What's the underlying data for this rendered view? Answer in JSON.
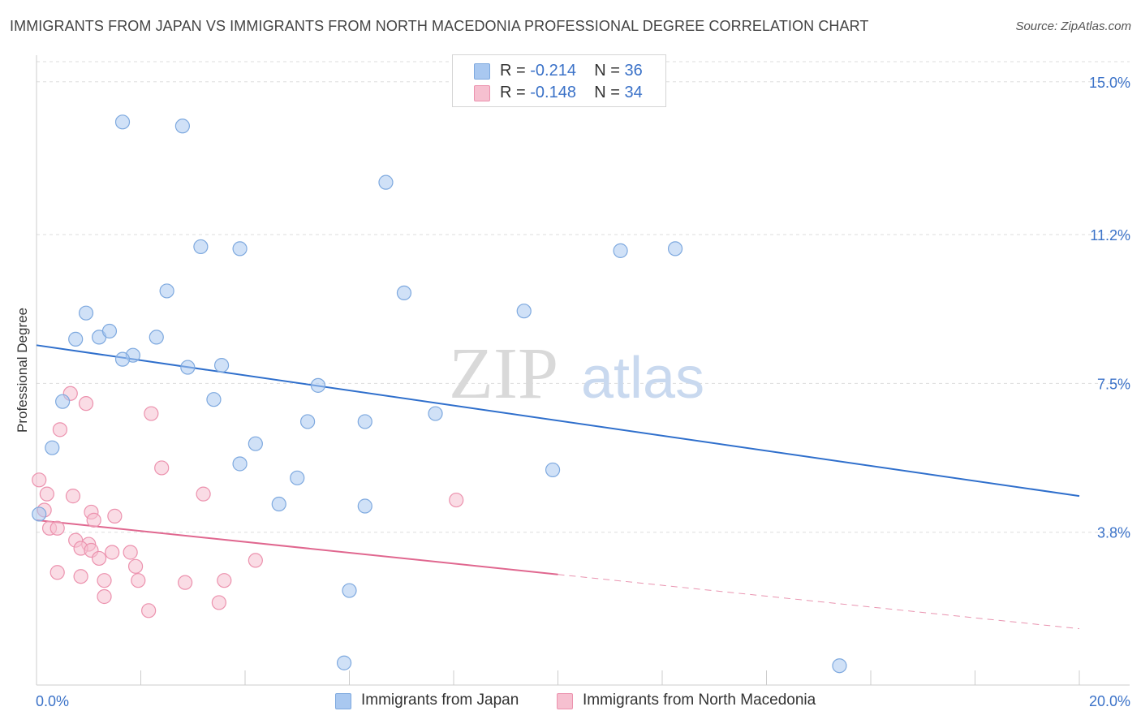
{
  "title": "IMMIGRANTS FROM JAPAN VS IMMIGRANTS FROM NORTH MACEDONIA PROFESSIONAL DEGREE CORRELATION CHART",
  "source": "Source: ZipAtlas.com",
  "watermark": {
    "zip": "ZIP",
    "atlas": "atlas"
  },
  "legend": {
    "rows": [
      {
        "r_label": "R = ",
        "r_value": "-0.214",
        "n_label": "N = ",
        "n_value": "36",
        "color": "#a9c8f0"
      },
      {
        "r_label": "R = ",
        "r_value": "-0.148",
        "n_label": "N = ",
        "n_value": "34",
        "color": "#f6b7ca"
      }
    ]
  },
  "colors": {
    "japan_fill": "#a9c8f0",
    "japan_stroke": "#7ea9df",
    "japan_line": "#2f6fcc",
    "macedonia_fill": "#f6c0d0",
    "macedonia_stroke": "#ec92ae",
    "macedonia_line": "#e0678f",
    "axis_label": "#3b72c8",
    "grid": "#dddddd"
  },
  "chart_data": {
    "type": "scatter",
    "xlabel": "",
    "ylabel": "Professional Degree",
    "xlim": [
      0,
      20
    ],
    "ylim": [
      0,
      15.5
    ],
    "x_tick_labels": [
      "0.0%",
      "20.0%"
    ],
    "y_ticks": [
      3.8,
      7.5,
      11.2,
      15.0
    ],
    "y_tick_labels": [
      "3.8%",
      "7.5%",
      "11.2%",
      "15.0%"
    ],
    "grid": true,
    "legend_position": "top-center",
    "series": [
      {
        "name": "Immigrants from Japan",
        "color": "#a9c8f0",
        "points": [
          [
            1.65,
            14.0
          ],
          [
            2.8,
            13.9
          ],
          [
            6.7,
            12.5
          ],
          [
            3.15,
            10.9
          ],
          [
            3.9,
            10.85
          ],
          [
            11.2,
            10.8
          ],
          [
            12.25,
            10.85
          ],
          [
            2.5,
            9.8
          ],
          [
            7.05,
            9.75
          ],
          [
            0.95,
            9.25
          ],
          [
            9.35,
            9.3
          ],
          [
            0.75,
            8.6
          ],
          [
            1.2,
            8.65
          ],
          [
            1.4,
            8.8
          ],
          [
            2.3,
            8.65
          ],
          [
            1.85,
            8.2
          ],
          [
            1.65,
            8.1
          ],
          [
            2.9,
            7.9
          ],
          [
            3.55,
            7.95
          ],
          [
            5.4,
            7.45
          ],
          [
            0.5,
            7.05
          ],
          [
            3.4,
            7.1
          ],
          [
            5.2,
            6.55
          ],
          [
            7.65,
            6.75
          ],
          [
            6.3,
            6.55
          ],
          [
            0.3,
            5.9
          ],
          [
            4.2,
            6.0
          ],
          [
            3.9,
            5.5
          ],
          [
            5.0,
            5.15
          ],
          [
            9.9,
            5.35
          ],
          [
            0.05,
            4.25
          ],
          [
            4.65,
            4.5
          ],
          [
            6.3,
            4.45
          ],
          [
            6.0,
            2.35
          ],
          [
            5.9,
            0.55
          ],
          [
            15.4,
            0.48
          ]
        ],
        "trend": {
          "x": [
            0,
            20
          ],
          "y": [
            8.45,
            4.7
          ]
        }
      },
      {
        "name": "Immigrants from North Macedonia",
        "color": "#f6b7ca",
        "points": [
          [
            0.65,
            7.25
          ],
          [
            0.95,
            7.0
          ],
          [
            2.2,
            6.75
          ],
          [
            0.45,
            6.35
          ],
          [
            0.05,
            5.1
          ],
          [
            2.4,
            5.4
          ],
          [
            0.2,
            4.75
          ],
          [
            0.7,
            4.7
          ],
          [
            3.2,
            4.75
          ],
          [
            8.05,
            4.6
          ],
          [
            0.15,
            4.35
          ],
          [
            1.05,
            4.3
          ],
          [
            1.5,
            4.2
          ],
          [
            1.1,
            4.1
          ],
          [
            0.25,
            3.9
          ],
          [
            0.4,
            3.9
          ],
          [
            0.75,
            3.6
          ],
          [
            1.0,
            3.5
          ],
          [
            0.85,
            3.4
          ],
          [
            1.05,
            3.35
          ],
          [
            1.45,
            3.3
          ],
          [
            1.8,
            3.3
          ],
          [
            1.2,
            3.15
          ],
          [
            4.2,
            3.1
          ],
          [
            1.9,
            2.95
          ],
          [
            0.4,
            2.8
          ],
          [
            0.85,
            2.7
          ],
          [
            1.3,
            2.6
          ],
          [
            1.95,
            2.6
          ],
          [
            3.6,
            2.6
          ],
          [
            2.85,
            2.55
          ],
          [
            1.3,
            2.2
          ],
          [
            3.5,
            2.05
          ],
          [
            2.15,
            1.85
          ]
        ],
        "trend": {
          "x": [
            0,
            10
          ],
          "y": [
            4.1,
            2.75
          ]
        },
        "trend_dashed": {
          "x": [
            10,
            20
          ],
          "y": [
            2.75,
            1.4
          ]
        }
      }
    ]
  },
  "bottom_legend": {
    "japan_label": "Immigrants from Japan",
    "macedonia_label": "Immigrants from North Macedonia"
  }
}
